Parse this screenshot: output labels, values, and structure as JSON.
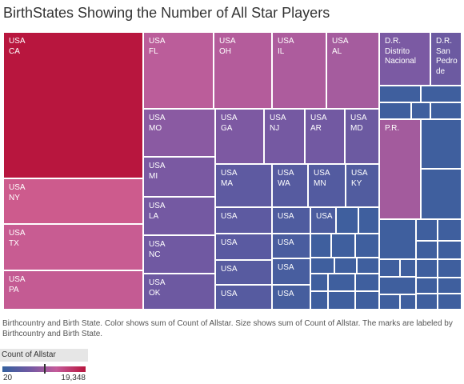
{
  "title": "BirthStates Showing the Number of  All Star Players",
  "caption": "Birthcountry and Birth State.  Color shows sum of Count of Allstar.  Size shows sum of Count of Allstar.  The marks are labeled by Birthcountry and Birth State.",
  "legend": {
    "title": "Count of Allstar",
    "min_label": "20",
    "max_label": "19,348",
    "marker_value": 0.5,
    "colors": {
      "low": "#33609e",
      "mid_low": "#7659a3",
      "mid_high": "#c45b9a",
      "high": "#b8163e"
    }
  },
  "chart_data": {
    "type": "treemap",
    "title": "BirthStates Showing the Number of  All Star Players",
    "color_measure": "Count of Allstar",
    "size_measure": "Count of Allstar",
    "color_range": [
      20,
      19348
    ],
    "labeled_marks": [
      {
        "country": "USA",
        "state": "CA",
        "color": "#b8163e"
      },
      {
        "country": "USA",
        "state": "NY",
        "color": "#cd5b8d"
      },
      {
        "country": "USA",
        "state": "TX",
        "color": "#c85c92"
      },
      {
        "country": "USA",
        "state": "PA",
        "color": "#c45b93"
      },
      {
        "country": "USA",
        "state": "FL",
        "color": "#bb5d9a"
      },
      {
        "country": "USA",
        "state": "OH",
        "color": "#b45c9b"
      },
      {
        "country": "USA",
        "state": "IL",
        "color": "#ad5c9d"
      },
      {
        "country": "USA",
        "state": "AL",
        "color": "#a55c9e"
      },
      {
        "country": "D.R.",
        "state": "Distrito Nacional",
        "color": "#7b5aa3"
      },
      {
        "country": "D.R.",
        "state": "San Pedro de",
        "color": "#6c5aa1"
      },
      {
        "country": "USA",
        "state": "MO",
        "color": "#8a5aa2"
      },
      {
        "country": "USA",
        "state": "GA",
        "color": "#7d59a2"
      },
      {
        "country": "USA",
        "state": "NJ",
        "color": "#7559a2"
      },
      {
        "country": "USA",
        "state": "AR",
        "color": "#7259a2"
      },
      {
        "country": "USA",
        "state": "MD",
        "color": "#6c5aa1"
      },
      {
        "country": "P.R.",
        "state": "",
        "color": "#a35b9d"
      },
      {
        "country": "USA",
        "state": "MI",
        "color": "#7a59a2"
      },
      {
        "country": "USA",
        "state": "MA",
        "color": "#5e5aa1"
      },
      {
        "country": "USA",
        "state": "WA",
        "color": "#565ba0"
      },
      {
        "country": "USA",
        "state": "MN",
        "color": "#535ba0"
      },
      {
        "country": "USA",
        "state": "KY",
        "color": "#515c9f"
      },
      {
        "country": "USA",
        "state": "LA",
        "color": "#7459a2"
      },
      {
        "country": "USA",
        "state": "NC",
        "color": "#7059a2"
      },
      {
        "country": "USA",
        "state": "OK",
        "color": "#6d59a1"
      },
      {
        "country": "USA",
        "state": "",
        "color": "#5d5aa1"
      },
      {
        "country": "USA",
        "state": "",
        "color": "#5a5aa1"
      },
      {
        "country": "USA",
        "state": "",
        "color": "#585ba0"
      },
      {
        "country": "USA",
        "state": "",
        "color": "#565ba0"
      },
      {
        "country": "USA",
        "state": "",
        "color": "#4f5c9f"
      },
      {
        "country": "USA",
        "state": "",
        "color": "#4c5d9f"
      },
      {
        "country": "USA",
        "state": "",
        "color": "#4a5d9f"
      },
      {
        "country": "USA",
        "state": "",
        "color": "#485e9f"
      },
      {
        "country": "USA",
        "state": "",
        "color": "#465e9e"
      },
      {
        "country": "USA",
        "state": "",
        "color": "#455e9e"
      }
    ],
    "unlabeled_mark_color": "#3f5f9e"
  }
}
